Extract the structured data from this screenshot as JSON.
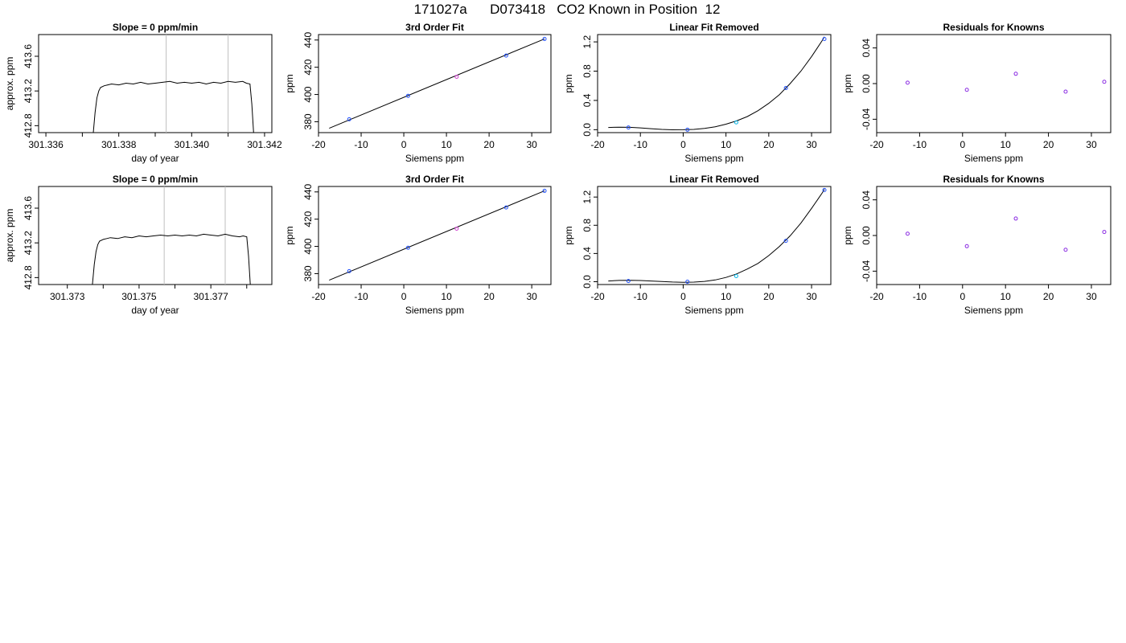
{
  "page_title": "171027a      D073418   CO2 Known in Position  12",
  "colors": {
    "axis": "#000000",
    "fit_line": "#000000",
    "vline": "#bfbfbf",
    "point_blue": "#1f4fff",
    "point_cyan": "#00b4e6",
    "point_purple": "#8a2be2",
    "point_magenta": "#d040d0"
  },
  "chart_data": [
    {
      "type": "line",
      "title": "Slope =  0  ppm/min",
      "xlabel": "day of year",
      "ylabel": "approx. ppm",
      "xlim": [
        301.3358,
        301.3422
      ],
      "ylim": [
        412.72,
        413.85
      ],
      "xticks": [
        301.336,
        301.337,
        301.338,
        301.339,
        301.34,
        301.341,
        301.342
      ],
      "xtick_labels": [
        "301.336",
        "",
        "301.338",
        "",
        "301.340",
        "",
        "301.342"
      ],
      "yticks": [
        412.8,
        413.2,
        413.6
      ],
      "ytick_labels": [
        "412.8",
        "413.2",
        "413.6"
      ],
      "vlines": [
        301.3393,
        301.341
      ],
      "series": [
        {
          "x": [
            301.3373,
            301.33735,
            301.3374,
            301.33745,
            301.3375,
            301.3376,
            301.3377,
            301.3378,
            301.338,
            301.3382,
            301.3384,
            301.3386,
            301.3388,
            301.339,
            301.3392,
            301.3394,
            301.3396,
            301.3398,
            301.34,
            301.3402,
            301.3404,
            301.3406,
            301.3408,
            301.341,
            301.3412,
            301.3414,
            301.3415,
            301.3416,
            301.34165,
            301.3417
          ],
          "y": [
            412.72,
            412.95,
            413.12,
            413.2,
            413.24,
            413.26,
            413.27,
            413.28,
            413.27,
            413.29,
            413.28,
            413.3,
            413.28,
            413.29,
            413.3,
            413.31,
            413.29,
            413.3,
            413.29,
            413.3,
            413.28,
            413.3,
            413.29,
            413.31,
            413.3,
            413.31,
            413.29,
            413.28,
            413.05,
            412.72
          ]
        }
      ]
    },
    {
      "type": "scatter",
      "title": "3rd Order Fit",
      "xlabel": "Siemens ppm",
      "ylabel": "ppm",
      "xlim": [
        -20,
        34.5
      ],
      "ylim": [
        372,
        444
      ],
      "xticks": [
        -20,
        -10,
        0,
        10,
        20,
        30
      ],
      "xtick_labels": [
        "-20",
        "-10",
        "0",
        "10",
        "20",
        "30"
      ],
      "yticks": [
        380,
        400,
        420,
        440
      ],
      "ytick_labels": [
        "380",
        "400",
        "420",
        "440"
      ],
      "fit": {
        "x": [
          -17.5,
          33
        ],
        "y": [
          375.2,
          440.8
        ]
      },
      "series": [
        {
          "x": [
            -12.8,
            1.0,
            12.4,
            24.0,
            33.0
          ],
          "y": [
            381.8,
            399.0,
            413.0,
            428.6,
            440.8
          ],
          "colors": [
            "#1f4fff",
            "#1f4fff",
            "#d040d0",
            "#1f4fff",
            "#1f4fff"
          ]
        }
      ]
    },
    {
      "type": "scatter",
      "title": "Linear Fit Removed",
      "xlabel": "Siemens ppm",
      "ylabel": "ppm",
      "xlim": [
        -20,
        34.5
      ],
      "ylim": [
        -0.04,
        1.3
      ],
      "xticks": [
        -20,
        -10,
        0,
        10,
        20,
        30
      ],
      "xtick_labels": [
        "-20",
        "-10",
        "0",
        "10",
        "20",
        "30"
      ],
      "yticks": [
        0.0,
        0.4,
        0.8,
        1.2
      ],
      "ytick_labels": [
        "0.0",
        "0.4",
        "0.8",
        "1.2"
      ],
      "fit": {
        "x": [
          -17.5,
          -15,
          -12.5,
          -10,
          -7.5,
          -5,
          -2.5,
          0,
          2.5,
          5,
          7.5,
          10,
          12.5,
          15,
          17.5,
          20,
          22.5,
          25,
          27.5,
          30,
          32.5,
          33
        ],
        "y": [
          0.03,
          0.035,
          0.033,
          0.025,
          0.014,
          0.004,
          -0.002,
          0.0,
          0.004,
          0.017,
          0.04,
          0.075,
          0.12,
          0.18,
          0.26,
          0.36,
          0.48,
          0.63,
          0.8,
          1.0,
          1.22,
          1.27
        ]
      },
      "series": [
        {
          "x": [
            -12.8,
            1.0,
            12.4,
            24.0,
            33.0
          ],
          "y": [
            0.03,
            0.0,
            0.1,
            0.57,
            1.24
          ],
          "colors": [
            "#1f4fff",
            "#1f4fff",
            "#00b4e6",
            "#1f4fff",
            "#1f4fff"
          ]
        }
      ]
    },
    {
      "type": "scatter",
      "title": "Residuals for Knowns",
      "xlabel": "Siemens ppm",
      "ylabel": "ppm",
      "xlim": [
        -20,
        34.5
      ],
      "ylim": [
        -0.055,
        0.055
      ],
      "xticks": [
        -20,
        -10,
        0,
        10,
        20,
        30
      ],
      "xtick_labels": [
        "-20",
        "-10",
        "0",
        "10",
        "20",
        "30"
      ],
      "yticks": [
        -0.04,
        0.0,
        0.04
      ],
      "ytick_labels": [
        "-0.04",
        "0.00",
        "0.04"
      ],
      "series": [
        {
          "x": [
            -12.8,
            1.0,
            12.4,
            24.0,
            33.0
          ],
          "y": [
            0.001,
            -0.007,
            0.011,
            -0.009,
            0.002
          ],
          "colors": [
            "#8a2be2",
            "#8a2be2",
            "#8a2be2",
            "#8a2be2",
            "#8a2be2"
          ]
        }
      ]
    },
    {
      "type": "line",
      "title": "Slope =  0  ppm/min",
      "xlabel": "day of year",
      "ylabel": "approx. ppm",
      "xlim": [
        301.3722,
        301.3787
      ],
      "ylim": [
        412.72,
        413.85
      ],
      "xticks": [
        301.373,
        301.374,
        301.375,
        301.376,
        301.377,
        301.378
      ],
      "xtick_labels": [
        "301.373",
        "",
        "301.375",
        "",
        "301.377",
        ""
      ],
      "yticks": [
        412.8,
        413.2,
        413.6
      ],
      "ytick_labels": [
        "412.8",
        "413.2",
        "413.6"
      ],
      "vlines": [
        301.3757,
        301.3774
      ],
      "series": [
        {
          "x": [
            301.3737,
            301.37375,
            301.3738,
            301.37385,
            301.3739,
            301.374,
            301.3741,
            301.3742,
            301.3744,
            301.3746,
            301.3748,
            301.375,
            301.3752,
            301.3754,
            301.3756,
            301.3758,
            301.376,
            301.3762,
            301.3764,
            301.3766,
            301.3768,
            301.377,
            301.3772,
            301.3774,
            301.3776,
            301.3778,
            301.3779,
            301.378,
            301.37805,
            301.3781
          ],
          "y": [
            412.72,
            412.95,
            413.1,
            413.18,
            413.22,
            413.24,
            413.25,
            413.26,
            413.25,
            413.27,
            413.26,
            413.28,
            413.27,
            413.28,
            413.29,
            413.28,
            413.29,
            413.28,
            413.29,
            413.28,
            413.3,
            413.29,
            413.28,
            413.3,
            413.28,
            413.27,
            413.28,
            413.27,
            413.05,
            412.72
          ]
        }
      ]
    },
    {
      "type": "scatter",
      "title": "3rd Order Fit",
      "xlabel": "Siemens ppm",
      "ylabel": "ppm",
      "xlim": [
        -20,
        34.5
      ],
      "ylim": [
        372,
        444
      ],
      "xticks": [
        -20,
        -10,
        0,
        10,
        20,
        30
      ],
      "xtick_labels": [
        "-20",
        "-10",
        "0",
        "10",
        "20",
        "30"
      ],
      "yticks": [
        380,
        400,
        420,
        440
      ],
      "ytick_labels": [
        "380",
        "400",
        "420",
        "440"
      ],
      "fit": {
        "x": [
          -17.5,
          33
        ],
        "y": [
          375.2,
          440.8
        ]
      },
      "series": [
        {
          "x": [
            -12.8,
            1.0,
            12.4,
            24.0,
            33.0
          ],
          "y": [
            381.8,
            399.0,
            413.0,
            428.6,
            440.8
          ],
          "colors": [
            "#1f4fff",
            "#1f4fff",
            "#d040d0",
            "#1f4fff",
            "#1f4fff"
          ]
        }
      ]
    },
    {
      "type": "scatter",
      "title": "Linear Fit Removed",
      "xlabel": "Siemens ppm",
      "ylabel": "ppm",
      "xlim": [
        -20,
        34.5
      ],
      "ylim": [
        -0.04,
        1.35
      ],
      "xticks": [
        -20,
        -10,
        0,
        10,
        20,
        30
      ],
      "xtick_labels": [
        "-20",
        "-10",
        "0",
        "10",
        "20",
        "30"
      ],
      "yticks": [
        0.0,
        0.4,
        0.8,
        1.2
      ],
      "ytick_labels": [
        "0.0",
        "0.4",
        "0.8",
        "1.2"
      ],
      "fit": {
        "x": [
          -17.5,
          -15,
          -12.5,
          -10,
          -7.5,
          -5,
          -2.5,
          0,
          2.5,
          5,
          7.5,
          10,
          12.5,
          15,
          17.5,
          20,
          22.5,
          25,
          27.5,
          30,
          32.5,
          33
        ],
        "y": [
          0.01,
          0.018,
          0.02,
          0.017,
          0.01,
          0.002,
          -0.005,
          -0.008,
          -0.006,
          0.004,
          0.025,
          0.06,
          0.11,
          0.18,
          0.26,
          0.37,
          0.5,
          0.65,
          0.83,
          1.04,
          1.26,
          1.31
        ]
      },
      "series": [
        {
          "x": [
            -12.8,
            1.0,
            12.4,
            24.0,
            33.0
          ],
          "y": [
            0.01,
            0.0,
            0.08,
            0.58,
            1.3
          ],
          "colors": [
            "#1f4fff",
            "#1f4fff",
            "#00b4e6",
            "#1f4fff",
            "#1f4fff"
          ]
        }
      ]
    },
    {
      "type": "scatter",
      "title": "Residuals for Knowns",
      "xlabel": "Siemens ppm",
      "ylabel": "ppm",
      "xlim": [
        -20,
        34.5
      ],
      "ylim": [
        -0.055,
        0.055
      ],
      "xticks": [
        -20,
        -10,
        0,
        10,
        20,
        30
      ],
      "xtick_labels": [
        "-20",
        "-10",
        "0",
        "10",
        "20",
        "30"
      ],
      "yticks": [
        -0.04,
        0.0,
        0.04
      ],
      "ytick_labels": [
        "-0.04",
        "0.00",
        "0.04"
      ],
      "series": [
        {
          "x": [
            -12.8,
            1.0,
            12.4,
            24.0,
            33.0
          ],
          "y": [
            0.002,
            -0.012,
            0.019,
            -0.016,
            0.004
          ],
          "colors": [
            "#8a2be2",
            "#8a2be2",
            "#8a2be2",
            "#8a2be2",
            "#8a2be2"
          ]
        }
      ]
    }
  ]
}
